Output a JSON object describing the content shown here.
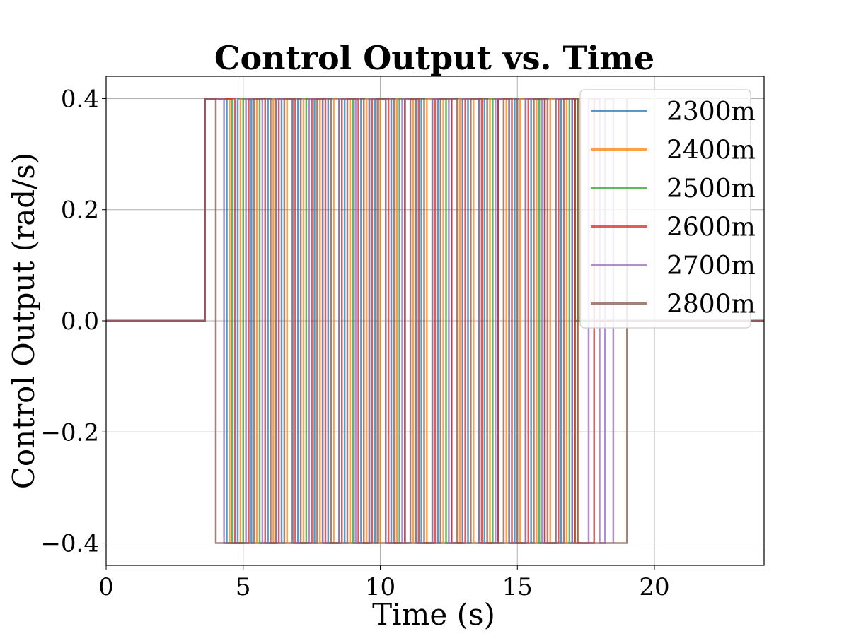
{
  "chart_data": {
    "type": "line",
    "title": "Control Output vs. Time",
    "xlabel": "Time (s)",
    "ylabel": "Control Output (rad/s)",
    "xlim": [
      0,
      24
    ],
    "ylim": [
      -0.44,
      0.44
    ],
    "xticks": [
      0,
      5,
      10,
      15,
      20
    ],
    "yticks": [
      0.4,
      0.2,
      0.0,
      -0.2,
      -0.4
    ],
    "xtick_labels": [
      "0",
      "5",
      "10",
      "15",
      "20"
    ],
    "ytick_labels": [
      "0.4",
      "0.2",
      "0.0",
      "−0.2",
      "−0.4"
    ],
    "grid": true,
    "legend_position": "top-right",
    "levels": {
      "high": 0.4,
      "zero": 0.0,
      "low": -0.4
    },
    "series": [
      {
        "name": "2300m",
        "color": "#1f77b4",
        "switch_times": [
          3.6,
          4.4,
          4.8,
          5.3,
          5.9,
          6.4,
          7.0,
          7.6,
          8.1,
          8.7,
          9.3,
          9.8,
          10.4,
          10.9,
          11.5,
          12.1,
          12.6,
          13.2,
          13.8,
          14.3,
          14.9,
          15.5,
          16.0,
          16.6,
          17.0
        ],
        "end_time": 17.1
      },
      {
        "name": "2400m",
        "color": "#ff7f0e",
        "switch_times": [
          3.6,
          4.5,
          4.9,
          5.5,
          6.1,
          6.6,
          7.2,
          7.8,
          8.3,
          8.9,
          9.5,
          10.0,
          10.6,
          11.2,
          11.7,
          12.3,
          12.9,
          13.4,
          14.0,
          14.6,
          15.1,
          15.7,
          16.2,
          16.8,
          17.2
        ],
        "end_time": 17.3
      },
      {
        "name": "2500m",
        "color": "#2ca02c",
        "switch_times": [
          3.6,
          4.6,
          5.0,
          5.6,
          6.2,
          6.8,
          7.3,
          7.9,
          8.5,
          9.0,
          9.6,
          10.2,
          10.7,
          11.3,
          11.9,
          12.4,
          13.0,
          13.6,
          14.1,
          14.7,
          15.3,
          15.8,
          16.4,
          16.9,
          17.1
        ],
        "end_time": 17.2
      },
      {
        "name": "2600m",
        "color": "#d62728",
        "switch_times": [
          3.6,
          4.7,
          5.2,
          5.8,
          6.3,
          6.9,
          7.5,
          8.0,
          8.6,
          9.2,
          9.7,
          10.3,
          10.9,
          11.4,
          12.0,
          12.6,
          13.1,
          13.7,
          14.3,
          14.8,
          15.4,
          16.0,
          16.5,
          17.1,
          17.8
        ],
        "end_time": 17.8
      },
      {
        "name": "2700m",
        "color": "#9467bd",
        "switch_times": [
          3.6,
          4.3,
          5.1,
          5.7,
          6.2,
          6.8,
          7.4,
          7.9,
          8.5,
          9.1,
          9.6,
          10.2,
          10.8,
          11.3,
          11.9,
          12.5,
          13.0,
          13.6,
          14.2,
          14.7,
          15.3,
          15.9,
          16.4,
          17.0,
          17.6,
          18.0,
          18.2,
          18.5
        ],
        "end_time": 18.5
      },
      {
        "name": "2800m",
        "color": "#8c564b",
        "switch_times": [
          3.6,
          4.0,
          5.4,
          6.0,
          6.5,
          7.1,
          7.7,
          8.2,
          8.8,
          9.4,
          9.9,
          10.5,
          11.1,
          11.6,
          12.2,
          12.8,
          13.3,
          13.9,
          14.5,
          15.0,
          15.6,
          16.1,
          16.7,
          17.2,
          19.0
        ],
        "end_time": 19.0
      }
    ]
  }
}
